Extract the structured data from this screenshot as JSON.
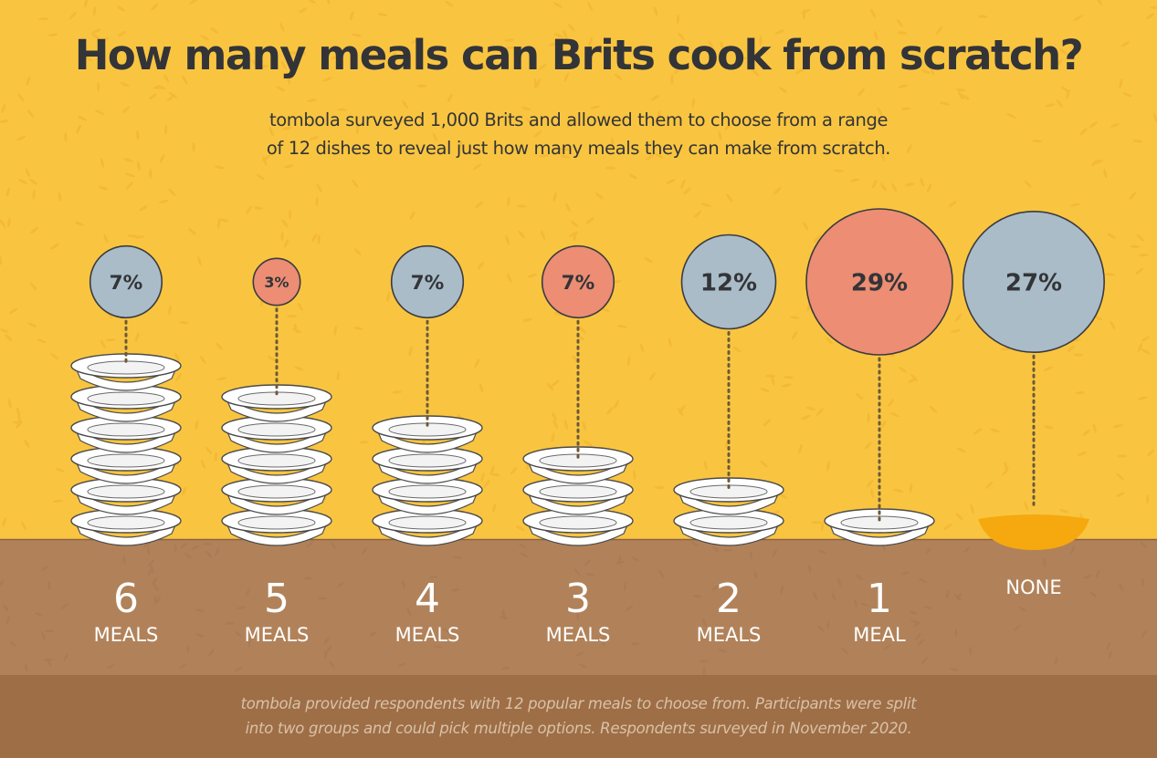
{
  "title": "How many meals can Brits cook from scratch?",
  "subtitle_lines": [
    "tombola surveyed 1,000 Brits and allowed them to choose from a range",
    "of 12 dishes to reveal just how many meals they can make from scratch."
  ],
  "footnote_lines": [
    "tombola provided respondents with 12 popular meals to choose from. Participants were split",
    "into two groups and could pick multiple options. Respondents surveyed in November 2020."
  ],
  "colors": {
    "background": "#F9C540",
    "counter": "#B1825A",
    "footer": "#9E6E47",
    "bubble_blue": "#A9BCC8",
    "bubble_salmon": "#EC8D74",
    "text_dark": "#333438",
    "plate": "#FFFFFF",
    "empty_bowl": "#F5A90F"
  },
  "chart_data": {
    "type": "bubble",
    "unit": "%",
    "categories": [
      {
        "number": "6",
        "word": "MEALS",
        "meals": 6,
        "value": 7,
        "label": "7%",
        "color": "#A9BCC8"
      },
      {
        "number": "5",
        "word": "MEALS",
        "meals": 5,
        "value": 3,
        "label": "3%",
        "color": "#EC8D74"
      },
      {
        "number": "4",
        "word": "MEALS",
        "meals": 4,
        "value": 7,
        "label": "7%",
        "color": "#A9BCC8"
      },
      {
        "number": "3",
        "word": "MEALS",
        "meals": 3,
        "value": 7,
        "label": "7%",
        "color": "#EC8D74"
      },
      {
        "number": "2",
        "word": "MEALS",
        "meals": 2,
        "value": 12,
        "label": "12%",
        "color": "#A9BCC8"
      },
      {
        "number": "1",
        "word": "MEAL",
        "meals": 1,
        "value": 29,
        "label": "29%",
        "color": "#EC8D74"
      },
      {
        "number": "",
        "word": "NONE",
        "meals": 0,
        "value": 27,
        "label": "27%",
        "color": "#A9BCC8"
      }
    ]
  }
}
